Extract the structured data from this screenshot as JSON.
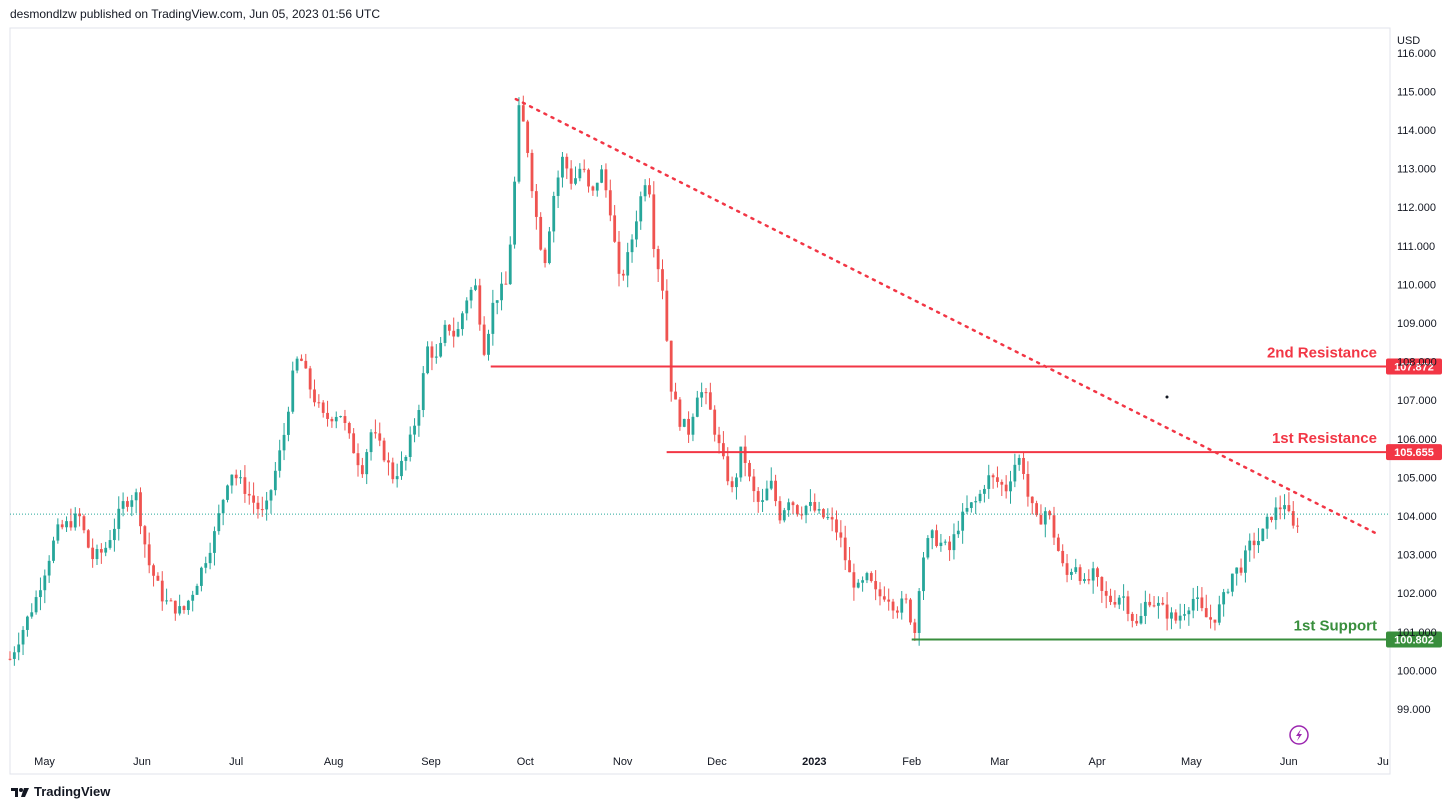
{
  "header": {
    "published": "desmondlzw published on TradingView.com, Jun 05, 2023 01:56 UTC"
  },
  "footer": {
    "brand": "TradingView",
    "logo": "tradingview-logo-icon"
  },
  "colors": {
    "up": "#26a69a",
    "down": "#ef5350",
    "resistance": "#f23645",
    "support": "#388e3c",
    "last_price_line": "#26a69a",
    "trendline": "#f23645"
  },
  "icons": {
    "replay": "lightning-icon"
  },
  "chart_data": {
    "type": "candlestick",
    "currency": "USD",
    "ylim": [
      98.3,
      115.9
    ],
    "y_ticks": [
      99.0,
      100.0,
      101.0,
      102.0,
      103.0,
      104.0,
      105.0,
      106.0,
      107.0,
      108.0,
      109.0,
      110.0,
      111.0,
      112.0,
      113.0,
      114.0,
      115.0,
      116.0
    ],
    "x_ticks": [
      "May",
      "Jun",
      "Jul",
      "Aug",
      "Sep",
      "Oct",
      "Nov",
      "Dec",
      "2023",
      "Feb",
      "Mar",
      "Apr",
      "May",
      "Jun",
      "Ju"
    ],
    "x_tick_dates": [
      "2022-05-01",
      "2022-06-01",
      "2022-07-01",
      "2022-08-01",
      "2022-09-01",
      "2022-10-01",
      "2022-11-01",
      "2022-12-01",
      "2023-01-01",
      "2023-02-01",
      "2023-03-01",
      "2023-04-01",
      "2023-05-01",
      "2023-06-01",
      "2023-07-01"
    ],
    "x_range": [
      "2022-04-20",
      "2023-07-01"
    ],
    "bold_ticks": [
      "2023"
    ],
    "levels": [
      {
        "name": "2nd Resistance",
        "value": 107.872,
        "label": "107.872",
        "kind": "resistance",
        "from": "2022-09-20"
      },
      {
        "name": "1st Resistance",
        "value": 105.655,
        "label": "105.655",
        "kind": "resistance",
        "from": "2022-11-15"
      },
      {
        "name": "1st Support",
        "value": 100.802,
        "label": "100.802",
        "kind": "support",
        "from": "2023-02-01"
      }
    ],
    "trendline": {
      "start": {
        "date": "2022-09-28",
        "value": 114.8
      },
      "end": {
        "date": "2023-06-30",
        "value": 103.5
      },
      "style": "dotted"
    },
    "last_price": 104.05,
    "series_path": [
      [
        "2022-04-20",
        100.3
      ],
      [
        "2022-04-28",
        101.8
      ],
      [
        "2022-05-05",
        103.6
      ],
      [
        "2022-05-12",
        104.0
      ],
      [
        "2022-05-16",
        102.9
      ],
      [
        "2022-05-20",
        103.1
      ],
      [
        "2022-05-26",
        104.3
      ],
      [
        "2022-05-30",
        104.6
      ],
      [
        "2022-06-03",
        102.8
      ],
      [
        "2022-06-08",
        101.8
      ],
      [
        "2022-06-14",
        101.5
      ],
      [
        "2022-06-18",
        102.2
      ],
      [
        "2022-06-24",
        103.5
      ],
      [
        "2022-06-29",
        105.2
      ],
      [
        "2022-07-03",
        104.8
      ],
      [
        "2022-07-07",
        104.3
      ],
      [
        "2022-07-10",
        104.0
      ],
      [
        "2022-07-13",
        105.0
      ],
      [
        "2022-07-16",
        106.0
      ],
      [
        "2022-07-19",
        107.6
      ],
      [
        "2022-07-21",
        108.2
      ],
      [
        "2022-07-25",
        107.2
      ],
      [
        "2022-07-29",
        106.5
      ],
      [
        "2022-08-03",
        106.7
      ],
      [
        "2022-08-06",
        106.0
      ],
      [
        "2022-08-10",
        105.2
      ],
      [
        "2022-08-13",
        106.2
      ],
      [
        "2022-08-17",
        105.6
      ],
      [
        "2022-08-20",
        105.0
      ],
      [
        "2022-08-24",
        105.5
      ],
      [
        "2022-08-28",
        106.8
      ],
      [
        "2022-08-31",
        108.4
      ],
      [
        "2022-09-03",
        108.0
      ],
      [
        "2022-09-06",
        109.0
      ],
      [
        "2022-09-09",
        108.6
      ],
      [
        "2022-09-12",
        109.6
      ],
      [
        "2022-09-15",
        110.0
      ],
      [
        "2022-09-18",
        108.3
      ],
      [
        "2022-09-21",
        109.6
      ],
      [
        "2022-09-25",
        110.0
      ],
      [
        "2022-09-27",
        111.8
      ],
      [
        "2022-09-29",
        114.5
      ],
      [
        "2022-10-01",
        114.0
      ],
      [
        "2022-10-04",
        112.0
      ],
      [
        "2022-10-07",
        110.5
      ],
      [
        "2022-10-10",
        112.3
      ],
      [
        "2022-10-13",
        113.3
      ],
      [
        "2022-10-16",
        112.6
      ],
      [
        "2022-10-19",
        113.1
      ],
      [
        "2022-10-22",
        112.2
      ],
      [
        "2022-10-25",
        113.0
      ],
      [
        "2022-10-28",
        112.0
      ],
      [
        "2022-10-31",
        110.0
      ],
      [
        "2022-11-03",
        110.8
      ],
      [
        "2022-11-06",
        112.0
      ],
      [
        "2022-11-09",
        113.0
      ],
      [
        "2022-11-11",
        111.0
      ],
      [
        "2022-11-14",
        109.8
      ],
      [
        "2022-11-16",
        107.5
      ],
      [
        "2022-11-19",
        106.5
      ],
      [
        "2022-11-22",
        106.2
      ],
      [
        "2022-11-25",
        107.3
      ],
      [
        "2022-11-28",
        107.0
      ],
      [
        "2022-12-01",
        106.0
      ],
      [
        "2022-12-03",
        105.4
      ],
      [
        "2022-12-06",
        104.6
      ],
      [
        "2022-12-09",
        105.8
      ],
      [
        "2022-12-12",
        104.7
      ],
      [
        "2022-12-15",
        104.2
      ],
      [
        "2022-12-18",
        104.9
      ],
      [
        "2022-12-21",
        104.0
      ],
      [
        "2022-12-24",
        104.5
      ],
      [
        "2022-12-27",
        104.1
      ],
      [
        "2022-12-30",
        104.3
      ],
      [
        "2023-01-03",
        104.0
      ],
      [
        "2023-01-06",
        103.9
      ],
      [
        "2023-01-09",
        103.5
      ],
      [
        "2023-01-12",
        102.5
      ],
      [
        "2023-01-15",
        102.1
      ],
      [
        "2023-01-18",
        102.4
      ],
      [
        "2023-01-21",
        101.9
      ],
      [
        "2023-01-24",
        102.0
      ],
      [
        "2023-01-27",
        101.6
      ],
      [
        "2023-01-30",
        101.8
      ],
      [
        "2023-02-02",
        101.0
      ],
      [
        "2023-02-04",
        102.8
      ],
      [
        "2023-02-07",
        103.5
      ],
      [
        "2023-02-10",
        103.3
      ],
      [
        "2023-02-13",
        103.1
      ],
      [
        "2023-02-16",
        103.8
      ],
      [
        "2023-02-19",
        104.2
      ],
      [
        "2023-02-22",
        104.4
      ],
      [
        "2023-02-25",
        105.0
      ],
      [
        "2023-02-28",
        104.9
      ],
      [
        "2023-03-03",
        104.7
      ],
      [
        "2023-03-06",
        105.4
      ],
      [
        "2023-03-08",
        105.5
      ],
      [
        "2023-03-10",
        104.5
      ],
      [
        "2023-03-13",
        103.8
      ],
      [
        "2023-03-16",
        104.2
      ],
      [
        "2023-03-19",
        103.3
      ],
      [
        "2023-03-22",
        102.4
      ],
      [
        "2023-03-25",
        102.8
      ],
      [
        "2023-03-28",
        102.2
      ],
      [
        "2023-03-31",
        102.5
      ],
      [
        "2023-04-03",
        101.9
      ],
      [
        "2023-04-06",
        101.8
      ],
      [
        "2023-04-09",
        102.0
      ],
      [
        "2023-04-12",
        101.4
      ],
      [
        "2023-04-14",
        101.1
      ],
      [
        "2023-04-17",
        101.9
      ],
      [
        "2023-04-20",
        101.7
      ],
      [
        "2023-04-23",
        101.5
      ],
      [
        "2023-04-26",
        101.3
      ],
      [
        "2023-04-29",
        101.6
      ],
      [
        "2023-05-02",
        101.9
      ],
      [
        "2023-05-05",
        101.4
      ],
      [
        "2023-05-08",
        101.3
      ],
      [
        "2023-05-11",
        101.8
      ],
      [
        "2023-05-14",
        102.5
      ],
      [
        "2023-05-17",
        102.7
      ],
      [
        "2023-05-20",
        103.3
      ],
      [
        "2023-05-23",
        103.4
      ],
      [
        "2023-05-26",
        104.0
      ],
      [
        "2023-05-29",
        104.2
      ],
      [
        "2023-05-31",
        104.4
      ],
      [
        "2023-06-02",
        103.6
      ],
      [
        "2023-06-05",
        104.05
      ]
    ]
  }
}
